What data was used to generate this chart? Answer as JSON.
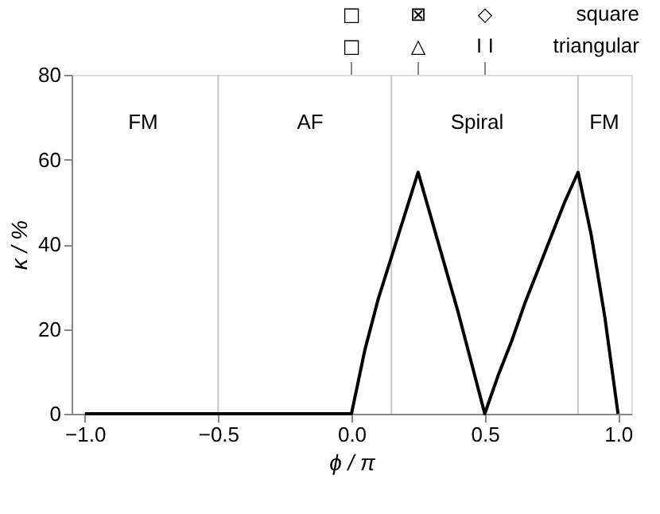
{
  "chart_data": {
    "type": "line",
    "xlabel": "ϕ / π",
    "ylabel": "κ / %",
    "x": [
      -1,
      -0.5,
      0,
      0.05,
      0.1,
      0.15,
      0.2,
      0.25,
      0.3,
      0.35,
      0.4,
      0.45,
      0.5,
      0.55,
      0.6,
      0.65,
      0.7,
      0.75,
      0.8,
      0.85,
      0.9,
      0.95,
      1
    ],
    "series": [
      {
        "color": "#000000",
        "values": [
          0,
          0,
          0,
          15,
          27,
          37,
          47,
          57,
          46,
          35,
          24,
          12,
          0,
          9,
          17,
          26,
          34,
          42,
          50,
          57,
          42,
          23,
          0
        ]
      }
    ],
    "xlim": [
      -1.05,
      1.05
    ],
    "ylim": [
      0,
      80
    ],
    "xticks": [
      {
        "value": -1,
        "label": "−1.0"
      },
      {
        "value": -0.5,
        "label": "−0.5"
      },
      {
        "value": 0,
        "label": "0.0"
      },
      {
        "value": 0.5,
        "label": "0.5"
      },
      {
        "value": 1,
        "label": "1.0"
      }
    ],
    "yticks": [
      0,
      20,
      40,
      60,
      80
    ],
    "ref_lines": [
      {
        "axis": "x",
        "value": -0.5,
        "color": "#c8c8c8"
      },
      {
        "axis": "x",
        "value": 0.15,
        "color": "#c8c8c8"
      },
      {
        "axis": "x",
        "value": 0.85,
        "color": "#c8c8c8"
      }
    ],
    "annotations": [
      "FM",
      "AF",
      "Spiral",
      "FM",
      "□",
      "⊠",
      "◇",
      "square",
      "□",
      "△",
      "I I",
      "triangular"
    ],
    "grid": false,
    "marker": "none",
    "line_style": "solid",
    "legend": false
  }
}
